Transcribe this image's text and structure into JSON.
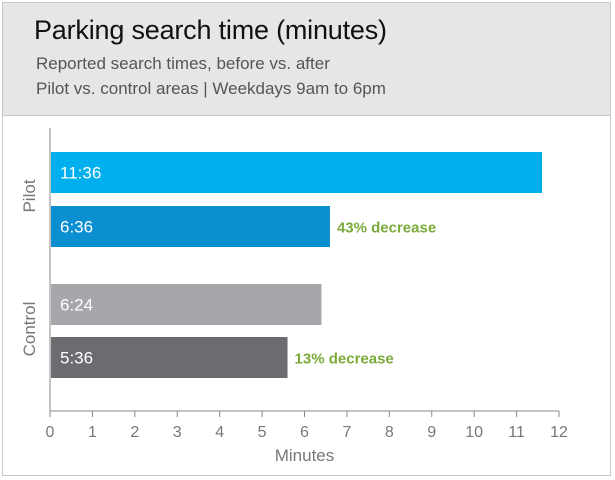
{
  "header": {
    "title": "Parking search time (minutes)",
    "subtitle_line1": "Reported search times, before vs. after",
    "subtitle_line2": "Pilot vs. control areas  |  Weekdays 9am to 6pm"
  },
  "colors": {
    "pilot_before": "#00b0ee",
    "pilot_after": "#0b8fd0",
    "control_before": "#a6a7aa",
    "control_after": "#6b6c70",
    "annotation": "#7aab3a",
    "axis": "#888888",
    "tick_text": "#777777",
    "bar_text": "#ffffff"
  },
  "chart_data": {
    "type": "bar",
    "orientation": "horizontal",
    "xlabel": "Minutes",
    "xlim": [
      0,
      12
    ],
    "xticks": [
      0,
      1,
      2,
      3,
      4,
      5,
      6,
      7,
      8,
      9,
      10,
      11,
      12
    ],
    "grid": false,
    "groups": [
      {
        "name": "Pilot",
        "bars": [
          {
            "value": 11.6,
            "label": "11:36",
            "color_key": "pilot_before"
          },
          {
            "value": 6.6,
            "label": "6:36",
            "color_key": "pilot_after",
            "annotation": "43% decrease"
          }
        ]
      },
      {
        "name": "Control",
        "bars": [
          {
            "value": 6.4,
            "label": "6:24",
            "color_key": "control_before"
          },
          {
            "value": 5.6,
            "label": "5:36",
            "color_key": "control_after",
            "annotation": "13% decrease"
          }
        ]
      }
    ]
  }
}
